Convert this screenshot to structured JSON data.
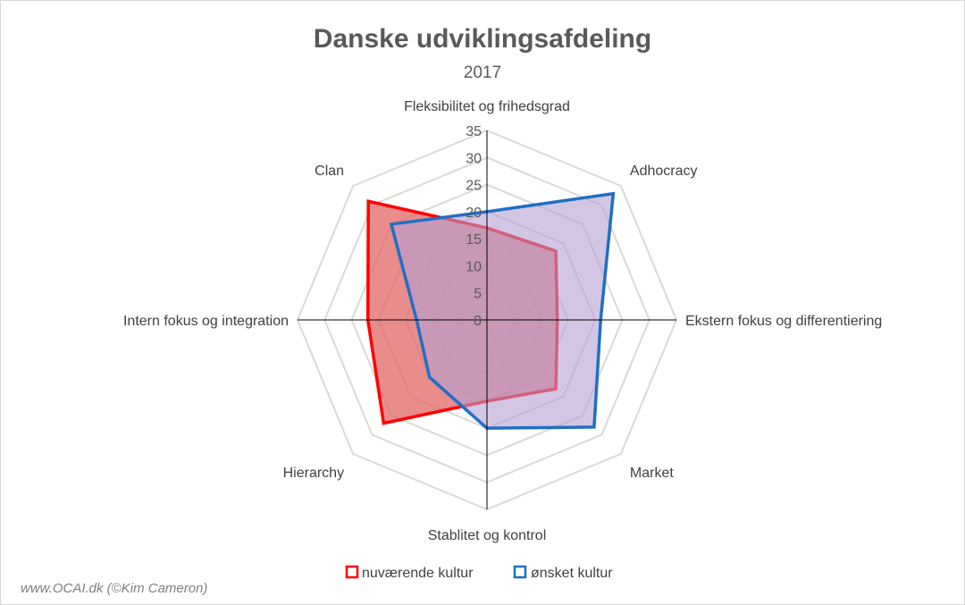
{
  "chart_data": {
    "type": "radar",
    "title": "Danske udviklingsafdeling",
    "subtitle": "2017",
    "axes": [
      "Fleksibilitet og frihedsgrad",
      "Adhocracy",
      "Ekstern fokus og differentiering",
      "Market",
      "Stablitet og kontrol",
      "Hierarchy",
      "Intern fokus og integration",
      "Clan"
    ],
    "r_ticks": [
      "0",
      "5",
      "10",
      "15",
      "20",
      "25",
      "30",
      "35"
    ],
    "r_ticks_values": [
      0,
      5,
      10,
      15,
      20,
      25,
      30,
      35
    ],
    "rmax": 35,
    "grid": true,
    "legend_position": "bottom",
    "series": [
      {
        "name": "nuværende kultur",
        "color": "#ff0000",
        "fill": "#e06666",
        "values": [
          17,
          18,
          13,
          18,
          15,
          27,
          22,
          31
        ]
      },
      {
        "name": "ønsket kultur",
        "color": "#1f6fc5",
        "fill": "#b4a0d2",
        "values": [
          20,
          33,
          21,
          28,
          20,
          15,
          13,
          25
        ]
      }
    ]
  },
  "footer": "www.OCAI.dk (©Kim Cameron)"
}
